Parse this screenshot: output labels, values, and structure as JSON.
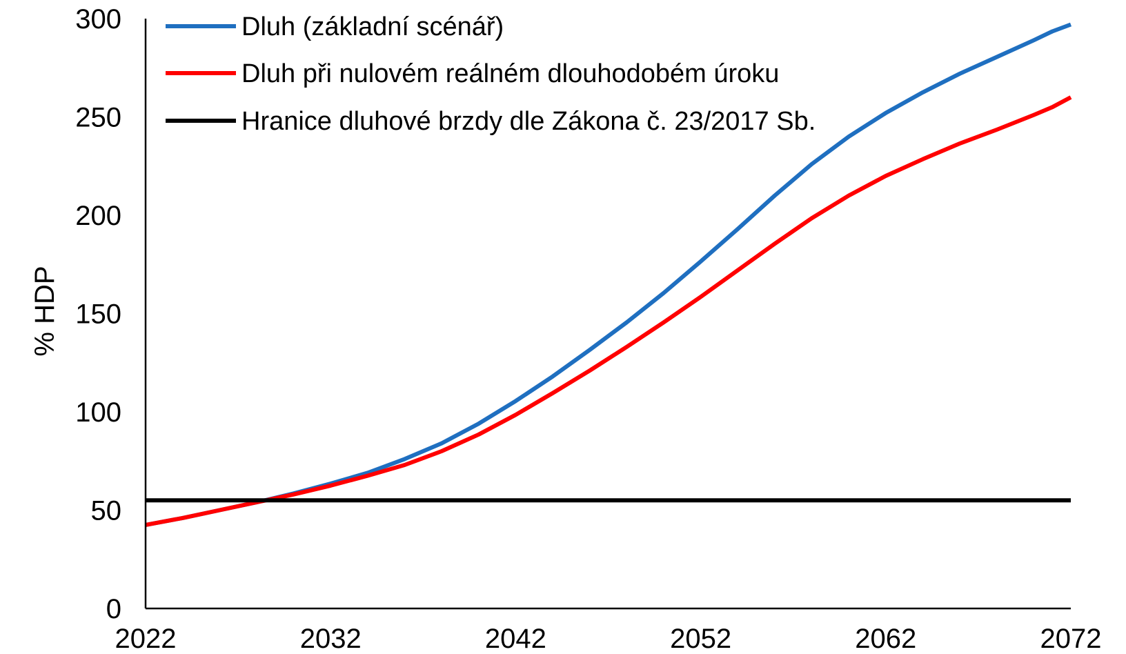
{
  "chart_data": {
    "type": "line",
    "title": "",
    "xlabel": "",
    "ylabel": "% HDP",
    "xlim": [
      2022,
      2072
    ],
    "ylim": [
      0,
      300
    ],
    "x_ticks": [
      "2022",
      "2032",
      "2042",
      "2052",
      "2062",
      "2072"
    ],
    "y_ticks": [
      "0",
      "50",
      "100",
      "150",
      "200",
      "250",
      "300"
    ],
    "grid": false,
    "legend_position": "top-left",
    "series": [
      {
        "name": "Dluh (základní scénář)",
        "color": "#1f6fc0",
        "x": [
          2022,
          2024,
          2026,
          2028,
          2030,
          2032,
          2034,
          2036,
          2038,
          2040,
          2042,
          2044,
          2046,
          2048,
          2050,
          2052,
          2054,
          2056,
          2058,
          2060,
          2062,
          2064,
          2066,
          2068,
          2070,
          2071,
          2072
        ],
        "values": [
          42.5,
          46,
          50,
          54,
          58.5,
          63.5,
          69,
          76,
          84,
          94,
          105.5,
          118,
          131.5,
          145.5,
          160.5,
          176.5,
          193,
          210,
          226,
          240,
          252,
          262.5,
          272,
          280.5,
          289,
          293.5,
          297
        ]
      },
      {
        "name": "Dluh při nulovém reálném dlouhodobém úroku",
        "color": "#ff0000",
        "x": [
          2022,
          2024,
          2026,
          2028,
          2030,
          2032,
          2034,
          2036,
          2038,
          2040,
          2042,
          2044,
          2046,
          2048,
          2050,
          2052,
          2054,
          2056,
          2058,
          2060,
          2062,
          2064,
          2066,
          2068,
          2070,
          2071,
          2072
        ],
        "values": [
          42.5,
          46,
          50,
          54,
          58,
          62.5,
          67.5,
          73,
          80,
          88.5,
          98.5,
          109.5,
          121,
          133,
          145.5,
          158.5,
          172,
          185.5,
          198.5,
          210,
          220,
          228.5,
          236.5,
          243.5,
          251,
          255,
          260
        ]
      },
      {
        "name": "Hranice dluhové brzdy dle Zákona č. 23/2017 Sb.",
        "color": "#000000",
        "x": [
          2022,
          2072
        ],
        "values": [
          55,
          55
        ]
      }
    ]
  }
}
